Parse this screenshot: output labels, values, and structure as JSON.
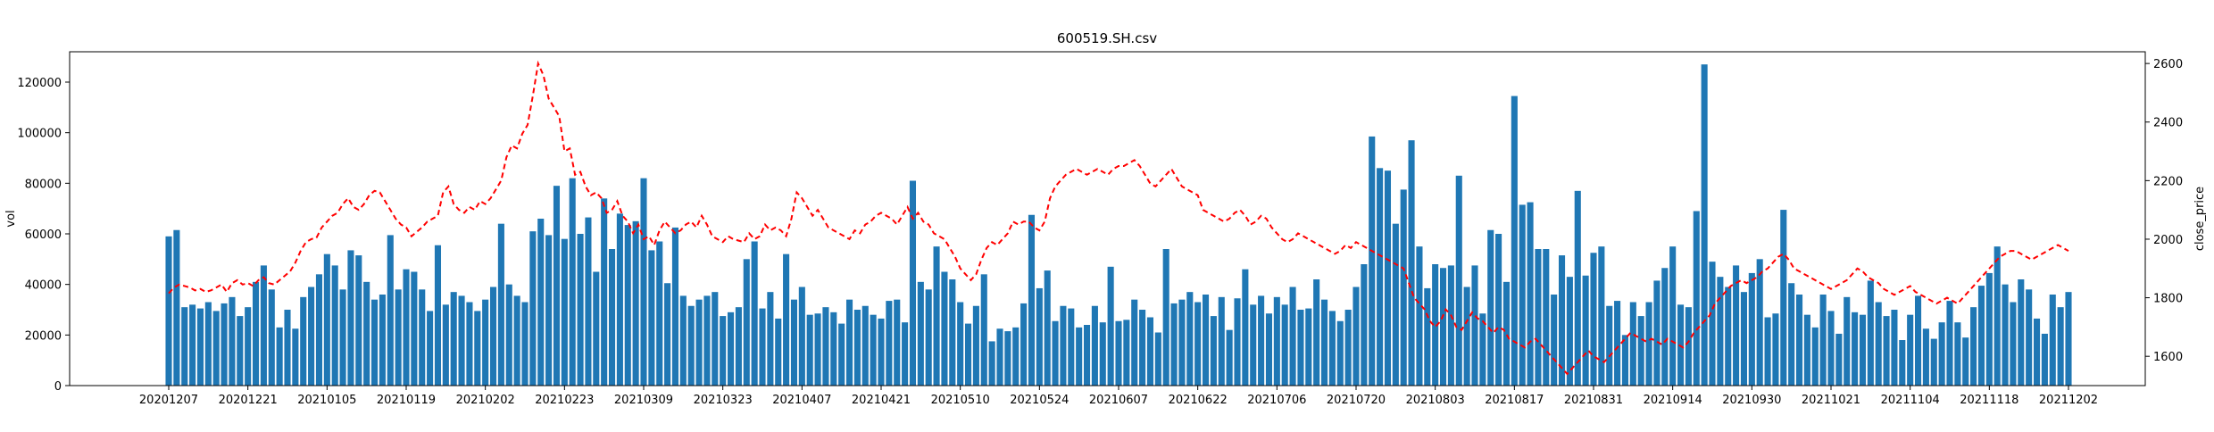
{
  "chart_data": {
    "type": "bar",
    "title": "600519.SH.csv",
    "xlabel": "",
    "ylabel": "vol",
    "y2label": "close_price",
    "x_ticks": [
      "20201207",
      "20201221",
      "20210105",
      "20210119",
      "20210202",
      "20210223",
      "20210309",
      "20210323",
      "20210407",
      "20210421",
      "20210510",
      "20210524",
      "20210607",
      "20210622",
      "20210706",
      "20210720",
      "20210803",
      "20210817",
      "20210831",
      "20210914",
      "20210930",
      "20211021",
      "20211104",
      "20211118",
      "20211202"
    ],
    "y_ticks": [
      0,
      20000,
      40000,
      60000,
      80000,
      100000,
      120000
    ],
    "y_tick_labels": [
      "0",
      "20000",
      "40000",
      "60000",
      "80000",
      "100000",
      "120000"
    ],
    "ylim": [
      0,
      132000
    ],
    "y2_ticks": [
      1600,
      1800,
      2000,
      2200,
      2400,
      2600
    ],
    "y2_tick_labels": [
      "1600",
      "1800",
      "2000",
      "2200",
      "2400",
      "2600"
    ],
    "y2lim": [
      1500,
      2640
    ],
    "grid": false,
    "legend": "none",
    "series": [
      {
        "role": "bars",
        "axis": "left",
        "color": "#1f77b4",
        "values": [
          59000,
          61500,
          31000,
          32000,
          30500,
          33000,
          29500,
          32500,
          35000,
          27500,
          31000,
          41000,
          47500,
          38000,
          23000,
          30000,
          22500,
          35000,
          39000,
          44000,
          52000,
          47500,
          38000,
          53500,
          51500,
          41000,
          34000,
          36000,
          59500,
          38000,
          46000,
          45000,
          38000,
          29500,
          55500,
          32000,
          37000,
          35500,
          33000,
          29500,
          34000,
          39000,
          64000,
          40000,
          35500,
          33000,
          61000,
          66000,
          59500,
          79000,
          58000,
          82000,
          60000,
          66500,
          45000,
          74000,
          54000,
          68000,
          63500,
          65000,
          82000,
          53500,
          57000,
          40500,
          62500,
          35500,
          31500,
          34000,
          35500,
          37000,
          27500,
          29000,
          31000,
          50000,
          57000,
          30500,
          37000,
          26500,
          52000,
          34000,
          39000,
          28000,
          28500,
          31000,
          29000,
          24500,
          34000,
          30000,
          31500,
          28000,
          26500,
          33500,
          34000,
          25000,
          81000,
          41000,
          38000,
          55000,
          45000,
          42000,
          33000,
          24500,
          31500,
          44000,
          17500,
          22500,
          21500,
          23000,
          32500,
          67500,
          38500,
          45500,
          25500,
          31500,
          30500,
          23000,
          24000,
          31500,
          25000,
          47000,
          25500,
          26000,
          34000,
          30000,
          27000,
          21000,
          54000,
          32500,
          34000,
          37000,
          33000,
          36000,
          27500,
          35000,
          22000,
          34500,
          46000,
          32000,
          35500,
          28500,
          35000,
          32000,
          39000,
          30000,
          30500,
          42000,
          34000,
          29500,
          25500,
          30000,
          39000,
          48000,
          98500,
          86000,
          85000,
          64000,
          77500,
          97000,
          55000,
          38500,
          48000,
          46500,
          47500,
          83000,
          39000,
          47500,
          28500,
          61500,
          60000,
          41000,
          114500,
          71500,
          72500,
          54000,
          54000,
          36000,
          51500,
          43000,
          77000,
          43500,
          52500,
          55000,
          31500,
          33500,
          20000,
          33000,
          27500,
          33000,
          41500,
          46500,
          55000,
          32000,
          31000,
          69000,
          127000,
          49000,
          43000,
          39000,
          47500,
          37000,
          44500,
          50000,
          27000,
          28500,
          69500,
          40500,
          36000,
          28000,
          23000,
          36000,
          29500,
          20500,
          35000,
          29000,
          28000,
          41500,
          33000,
          27500,
          30000,
          18000,
          28000,
          35500,
          22500,
          18500,
          25000,
          33500,
          25000,
          19000,
          31000,
          39500,
          44500,
          55000,
          40000,
          33000,
          42000,
          38000,
          26500,
          20500,
          36000,
          31000,
          37000
        ]
      },
      {
        "role": "line",
        "axis": "right",
        "color": "#ff0000",
        "style": "dashed",
        "values": [
          1815,
          1835,
          1845,
          1840,
          1835,
          1825,
          1830,
          1820,
          1825,
          1835,
          1845,
          1820,
          1850,
          1860,
          1845,
          1850,
          1840,
          1860,
          1870,
          1850,
          1845,
          1860,
          1875,
          1890,
          1920,
          1960,
          1990,
          2000,
          2005,
          2040,
          2060,
          2080,
          2090,
          2120,
          2140,
          2110,
          2100,
          2120,
          2150,
          2165,
          2160,
          2130,
          2100,
          2070,
          2050,
          2040,
          2010,
          2025,
          2040,
          2060,
          2070,
          2080,
          2160,
          2180,
          2120,
          2100,
          2090,
          2110,
          2100,
          2130,
          2120,
          2140,
          2170,
          2200,
          2280,
          2320,
          2310,
          2360,
          2390,
          2490,
          2600,
          2560,
          2480,
          2450,
          2420,
          2300,
          2310,
          2220,
          2230,
          2180,
          2150,
          2160,
          2140,
          2090,
          2100,
          2130,
          2080,
          2060,
          2020,
          2050,
          2000,
          2010,
          1980,
          2030,
          2060,
          2040,
          2020,
          2030,
          2050,
          2060,
          2040,
          2080,
          2050,
          2010,
          2000,
          1990,
          2010,
          2000,
          1995,
          1990,
          2020,
          2000,
          2010,
          2050,
          2030,
          2040,
          2030,
          2010,
          2070,
          2160,
          2140,
          2110,
          2080,
          2100,
          2070,
          2040,
          2030,
          2020,
          2010,
          2000,
          2030,
          2020,
          2050,
          2060,
          2080,
          2090,
          2080,
          2070,
          2050,
          2080,
          2110,
          2070,
          2090,
          2060,
          2050,
          2020,
          2010,
          2000,
          1970,
          1940,
          1900,
          1880,
          1860,
          1880,
          1930,
          1970,
          1990,
          1980,
          2000,
          2020,
          2060,
          2050,
          2060,
          2060,
          2040,
          2030,
          2060,
          2140,
          2180,
          2200,
          2220,
          2230,
          2240,
          2230,
          2220,
          2230,
          2240,
          2230,
          2220,
          2240,
          2250,
          2250,
          2260,
          2270,
          2250,
          2220,
          2190,
          2180,
          2200,
          2220,
          2240,
          2210,
          2180,
          2170,
          2160,
          2150,
          2100,
          2090,
          2080,
          2070,
          2060,
          2070,
          2090,
          2100,
          2080,
          2050,
          2060,
          2080,
          2070,
          2040,
          2020,
          2000,
          1990,
          2000,
          2020,
          2010,
          2000,
          1990,
          1980,
          1970,
          1960,
          1950,
          1960,
          1980,
          1970,
          1990,
          1980,
          1970,
          1960,
          1950,
          1940,
          1930,
          1920,
          1910,
          1900,
          1850,
          1800,
          1780,
          1760,
          1720,
          1700,
          1720,
          1760,
          1740,
          1700,
          1690,
          1720,
          1750,
          1730,
          1720,
          1700,
          1680,
          1700,
          1690,
          1660,
          1650,
          1640,
          1630,
          1650,
          1660,
          1640,
          1620,
          1600,
          1580,
          1560,
          1540,
          1560,
          1580,
          1600,
          1620,
          1600,
          1590,
          1580,
          1600,
          1620,
          1640,
          1660,
          1680,
          1670,
          1660,
          1650,
          1660,
          1650,
          1640,
          1660,
          1650,
          1640,
          1630,
          1650,
          1680,
          1700,
          1720,
          1740,
          1780,
          1800,
          1820,
          1840,
          1850,
          1860,
          1850,
          1860,
          1870,
          1890,
          1900,
          1920,
          1940,
          1950,
          1930,
          1900,
          1890,
          1880,
          1870,
          1860,
          1850,
          1840,
          1830,
          1840,
          1850,
          1860,
          1880,
          1900,
          1890,
          1870,
          1860,
          1850,
          1830,
          1820,
          1810,
          1820,
          1830,
          1840,
          1820,
          1810,
          1800,
          1790,
          1780,
          1790,
          1800,
          1790,
          1780,
          1800,
          1820,
          1840,
          1860,
          1880,
          1900,
          1920,
          1940,
          1950,
          1960,
          1960,
          1950,
          1940,
          1930,
          1940,
          1950,
          1960,
          1970,
          1980,
          1970,
          1960
        ]
      }
    ]
  }
}
